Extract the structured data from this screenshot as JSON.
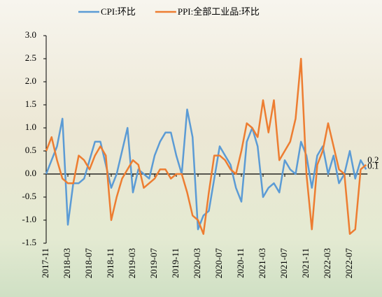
{
  "chart_data": {
    "type": "line",
    "categories": [
      "2017-11",
      null,
      null,
      null,
      "2018-03",
      null,
      null,
      null,
      "2018-07",
      null,
      null,
      null,
      "2018-11",
      null,
      null,
      null,
      "2019-03",
      null,
      null,
      null,
      "2019-07",
      null,
      null,
      null,
      "2019-11",
      null,
      null,
      null,
      "2020-03",
      null,
      null,
      null,
      "2020-07",
      null,
      null,
      null,
      "2020-11",
      null,
      null,
      null,
      "2021-03",
      null,
      null,
      null,
      "2021-07",
      null,
      null,
      null,
      "2021-11",
      null,
      null,
      null,
      "2022-03",
      null,
      null,
      null,
      "2022-07",
      null,
      null,
      null
    ],
    "series": [
      {
        "name": "CPI:环比",
        "color": "#5b9bd5",
        "values": [
          0.0,
          0.3,
          0.6,
          1.2,
          -1.1,
          -0.2,
          -0.2,
          -0.1,
          0.3,
          0.7,
          0.7,
          0.2,
          -0.3,
          0.0,
          0.5,
          1.0,
          -0.4,
          0.1,
          0.0,
          -0.1,
          0.4,
          0.7,
          0.9,
          0.9,
          0.4,
          0.0,
          1.4,
          0.8,
          -1.2,
          -0.9,
          -0.8,
          -0.1,
          0.6,
          0.4,
          0.2,
          -0.3,
          -0.6,
          0.7,
          1.0,
          0.6,
          -0.5,
          -0.3,
          -0.2,
          -0.4,
          0.3,
          0.1,
          0.0,
          0.7,
          0.4,
          -0.3,
          0.4,
          0.6,
          0.0,
          0.4,
          -0.2,
          0.0,
          0.5,
          -0.1,
          0.3,
          0.1
        ]
      },
      {
        "name": "PPI:全部工业品:环比",
        "color": "#ed7d31",
        "values": [
          0.5,
          0.8,
          0.3,
          -0.1,
          -0.2,
          -0.2,
          0.4,
          0.3,
          0.1,
          0.4,
          0.6,
          0.4,
          -1.0,
          -0.5,
          -0.1,
          0.1,
          0.3,
          0.2,
          -0.3,
          -0.2,
          -0.1,
          0.1,
          0.1,
          -0.1,
          0.0,
          0.0,
          -0.4,
          -0.9,
          -1.0,
          -1.3,
          -0.4,
          0.4,
          0.4,
          0.3,
          0.1,
          0.0,
          0.5,
          1.1,
          1.0,
          0.8,
          1.6,
          0.9,
          1.6,
          0.3,
          0.5,
          0.7,
          1.2,
          2.5,
          0.0,
          -1.2,
          0.2,
          0.5,
          1.1,
          0.6,
          0.1,
          0.0,
          -1.3,
          -1.2,
          0.1,
          0.2
        ]
      }
    ],
    "ylim": [
      -1.5,
      3.0
    ],
    "yticks": [
      {
        "value": -1.5,
        "label": "-1.5"
      },
      {
        "value": -1.0,
        "label": "-1.0"
      },
      {
        "value": -0.5,
        "label": "-0.5"
      },
      {
        "value": 0.0,
        "label": "0.0"
      },
      {
        "value": 0.5,
        "label": "0.5"
      },
      {
        "value": 1.0,
        "label": "1.0"
      },
      {
        "value": 1.5,
        "label": "1.5"
      },
      {
        "value": 2.0,
        "label": "2.0"
      },
      {
        "value": 2.5,
        "label": "2.5"
      },
      {
        "value": 3.0,
        "label": "3.0"
      }
    ],
    "legend": "top",
    "grid": false
  }
}
